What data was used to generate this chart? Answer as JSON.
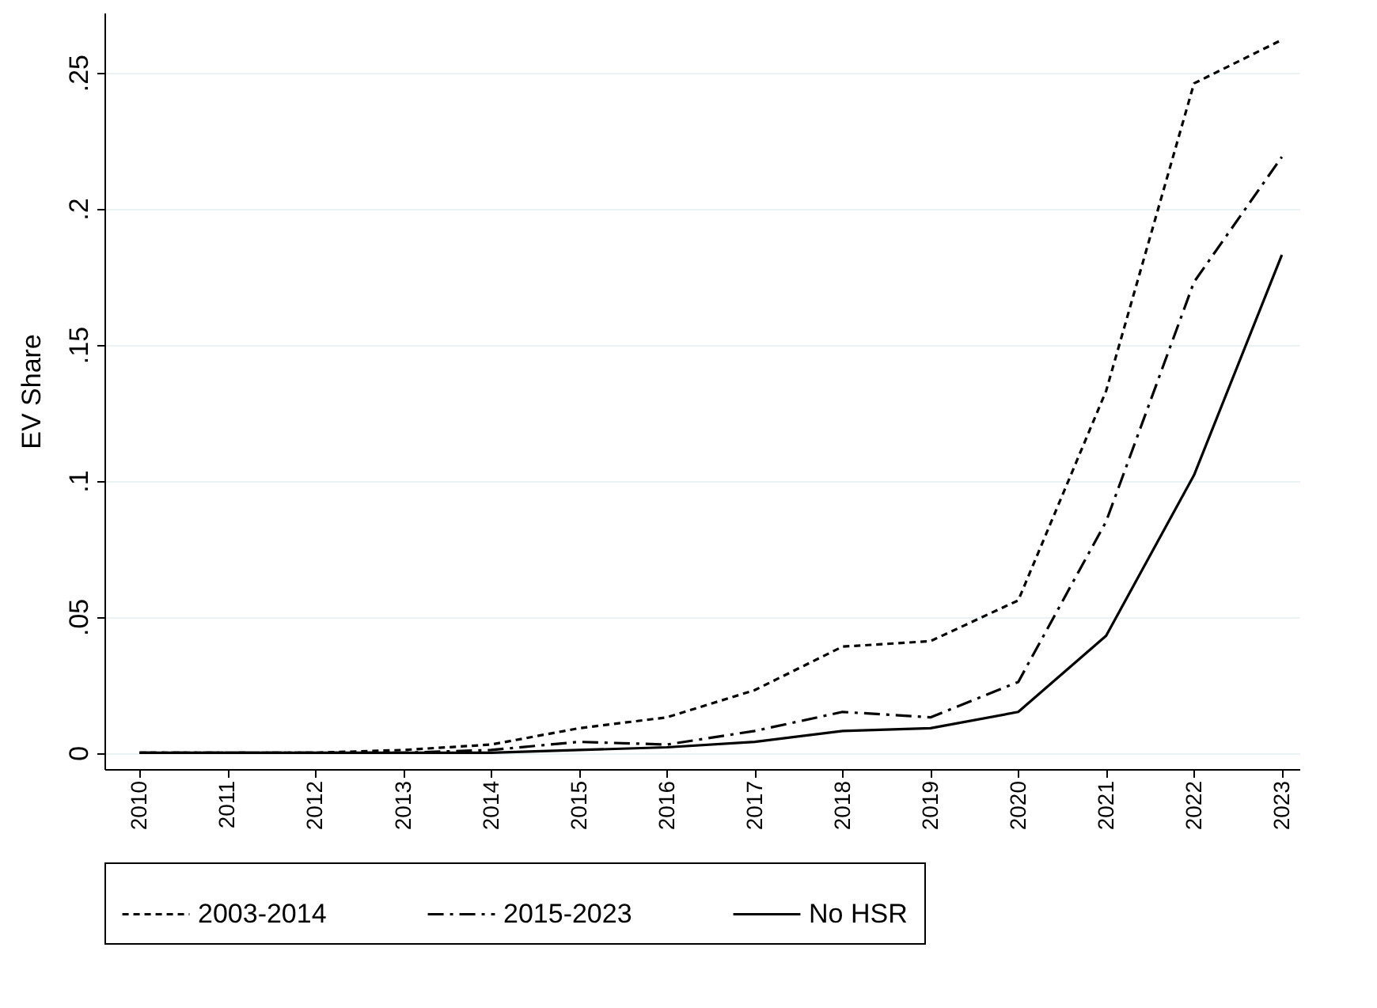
{
  "chart_data": {
    "type": "line",
    "ylabel": "EV Share",
    "x": [
      2010,
      2011,
      2012,
      2013,
      2014,
      2015,
      2016,
      2017,
      2018,
      2019,
      2020,
      2021,
      2022,
      2023
    ],
    "series": [
      {
        "name": "2003-2014",
        "color": "#000000",
        "line_style": "dotted",
        "values": [
          0,
          0,
          0,
          0.001,
          0.003,
          0.009,
          0.013,
          0.023,
          0.039,
          0.041,
          0.056,
          0.133,
          0.246,
          0.262
        ]
      },
      {
        "name": "2015-2023",
        "color": "#000000",
        "line_style": "dashed",
        "values": [
          0,
          0,
          0,
          0,
          0.001,
          0.004,
          0.003,
          0.008,
          0.015,
          0.013,
          0.026,
          0.085,
          0.173,
          0.219
        ]
      },
      {
        "name": "No HSR",
        "color": "#000000",
        "line_style": "solid",
        "values": [
          0,
          0,
          0,
          0,
          0,
          0.001,
          0.002,
          0.004,
          0.008,
          0.009,
          0.015,
          0.043,
          0.102,
          0.183
        ]
      }
    ],
    "xlim": [
      2009.6,
      2023.2
    ],
    "xticks": [
      2010,
      2011,
      2012,
      2013,
      2014,
      2015,
      2016,
      2017,
      2018,
      2019,
      2020,
      2021,
      2022,
      2023
    ],
    "ylim": [
      -0.006,
      0.272
    ],
    "yticks": [
      0,
      {
        "value": 0.05,
        "label": ".05"
      },
      {
        "value": 0.1,
        "label": ".1"
      },
      {
        "value": 0.15,
        "label": ".15"
      },
      {
        "value": 0.2,
        "label": ".2"
      },
      {
        "value": 0.25,
        "label": ".25"
      }
    ],
    "grid": "y",
    "legend": "bottom",
    "marker": "none"
  }
}
